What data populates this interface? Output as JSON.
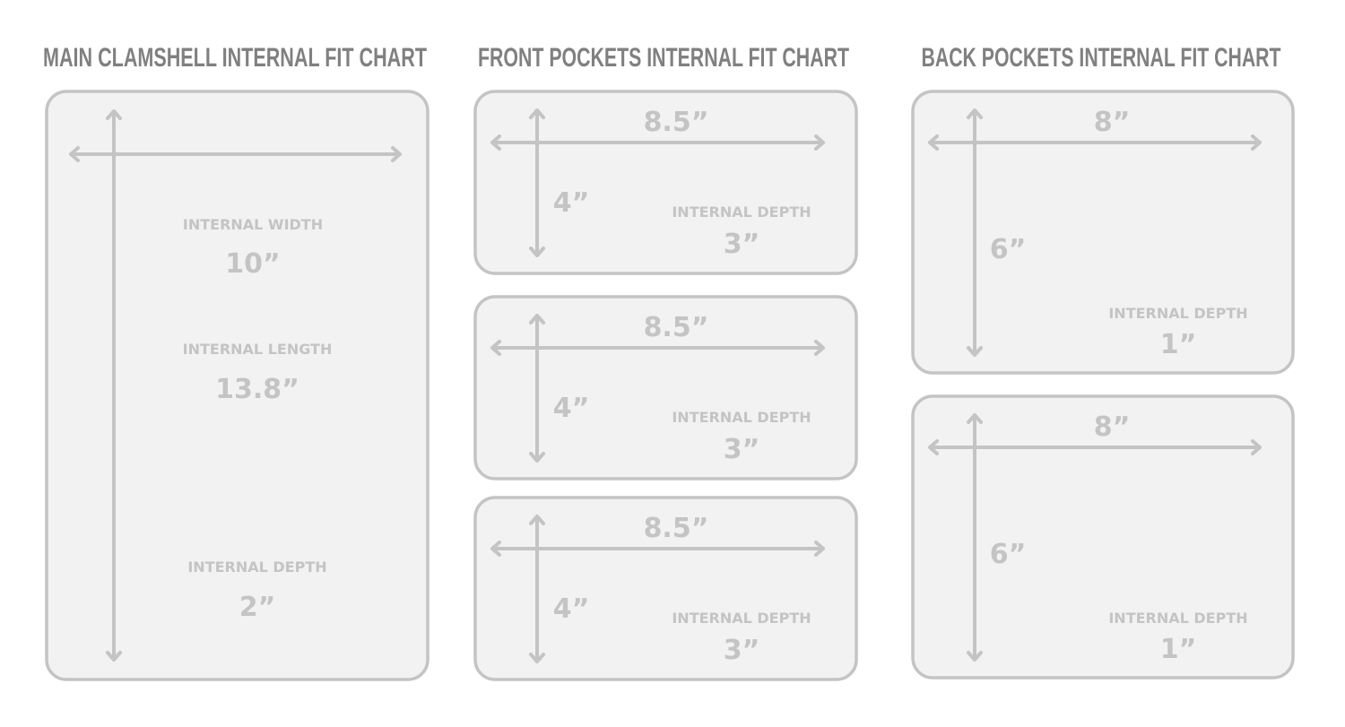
{
  "colors": {
    "title": "#808080",
    "line": "#c4c4c4",
    "fill": "#f2f2f2"
  },
  "main": {
    "title": "MAIN CLAMSHELL INTERNAL FIT CHART",
    "width_label": "INTERNAL WIDTH",
    "width_value": "10”",
    "length_label": "INTERNAL LENGTH",
    "length_value": "13.8”",
    "depth_label": "INTERNAL DEPTH",
    "depth_value": "2”"
  },
  "front": {
    "title": "FRONT POCKETS INTERNAL FIT CHART",
    "pockets": [
      {
        "width_value": "8.5”",
        "height_value": "4”",
        "depth_label": "INTERNAL DEPTH",
        "depth_value": "3”"
      },
      {
        "width_value": "8.5”",
        "height_value": "4”",
        "depth_label": "INTERNAL DEPTH",
        "depth_value": "3”"
      },
      {
        "width_value": "8.5”",
        "height_value": "4”",
        "depth_label": "INTERNAL DEPTH",
        "depth_value": "3”"
      }
    ]
  },
  "back": {
    "title": "BACK POCKETS INTERNAL FIT CHART",
    "pockets": [
      {
        "width_value": "8”",
        "height_value": "6”",
        "depth_label": "INTERNAL DEPTH",
        "depth_value": "1”"
      },
      {
        "width_value": "8”",
        "height_value": "6”",
        "depth_label": "INTERNAL DEPTH",
        "depth_value": "1”"
      }
    ]
  }
}
